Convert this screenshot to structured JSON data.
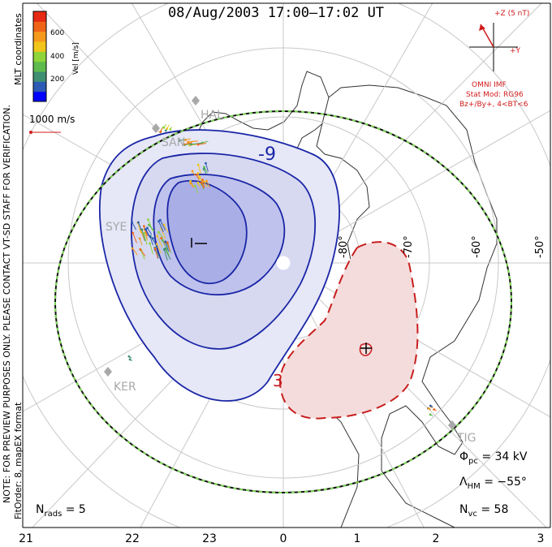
{
  "title": "08/Aug/2003 17:00–17:02 UT",
  "preview_notice": "NOTE: FOR PREVIEW PURPOSES ONLY. PLEASE CONTACT VT-SD STAFF FOR VERIFICATION.",
  "fit_order": "FitOrder: 8, mapEX format",
  "mlt_coordinates": "MLT coordinates",
  "colorbar": {
    "label": "Vel [m/s]",
    "ticks": [
      "600",
      "400",
      "200"
    ],
    "colors": [
      "#0000ff",
      "#2d5ab5",
      "#3f8f73",
      "#5dbb4d",
      "#8fd43a",
      "#f2c51a",
      "#f59a1c",
      "#f06418",
      "#e62a14"
    ]
  },
  "reference_vector": "1000 m/s",
  "imf": {
    "z_label": "+Z (5 nT)",
    "y_label": "+Y",
    "title": "OMNI IMF",
    "stat_mod": "Stat Mod: RG96",
    "condition": "Bz+/By+, 4<BT<6",
    "color": "#d21a1a"
  },
  "radars": [
    "HAL",
    "SAN",
    "SYE",
    "KER",
    "TIG"
  ],
  "latitude_labels": [
    "-80°",
    "-70°",
    "-60°",
    "-50°"
  ],
  "contour_labels": {
    "negative": "-9",
    "positive": "3"
  },
  "stats": {
    "phi_pc": "= 34 kV",
    "lambda_hm": "= −55°",
    "n_vc": "= 58",
    "n_rads": "= 5"
  },
  "mlt_ticks": [
    "21",
    "22",
    "23",
    "0",
    "1",
    "2",
    "3"
  ],
  "colors": {
    "negative_contour": "#1a26a6",
    "positive_contour": "#c81e1e",
    "hm_boundary": "#7ed957"
  }
}
